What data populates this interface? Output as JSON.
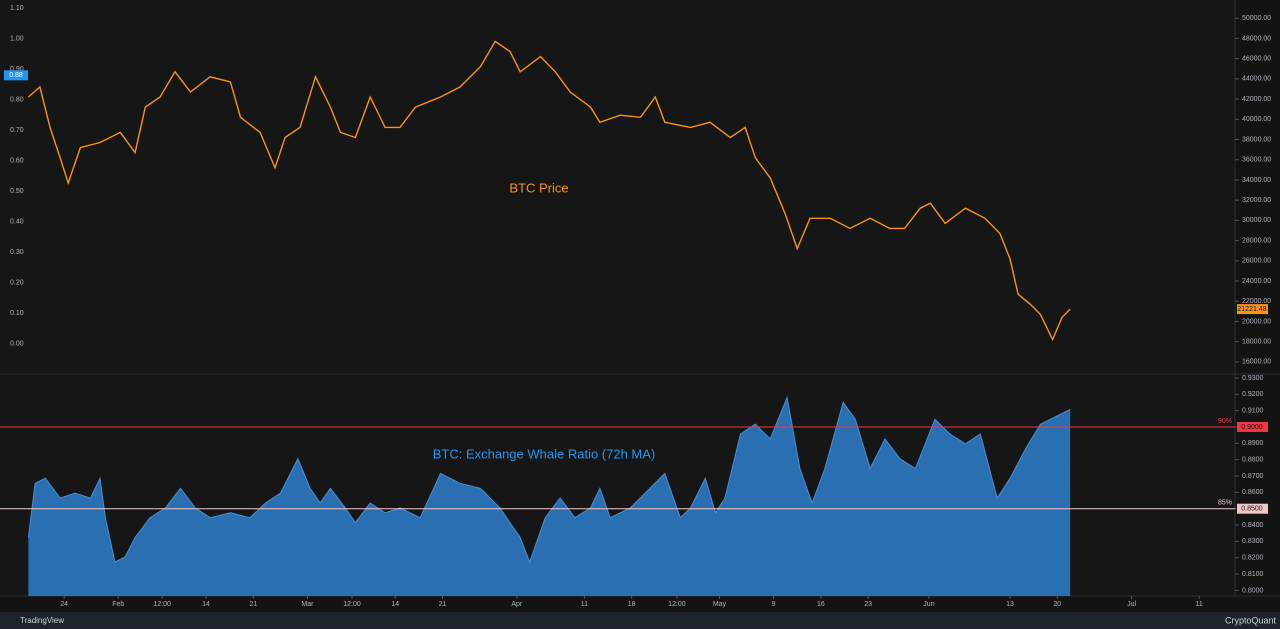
{
  "chart_data": [
    {
      "type": "line",
      "annotation": "BTC Price",
      "xlim": [
        -2.5,
        180.3
      ],
      "ylim": [
        14900,
        51800
      ],
      "y2lim": [
        -0.096,
        1.127
      ],
      "yticks": [
        {
          "value": 16000,
          "label": "16000.00"
        },
        {
          "value": 18000,
          "label": "18000.00"
        },
        {
          "value": 20000,
          "label": "20000.00"
        },
        {
          "value": 22000,
          "label": "22000.00"
        },
        {
          "value": 24000,
          "label": "24000.00"
        },
        {
          "value": 26000,
          "label": "26000.00"
        },
        {
          "value": 28000,
          "label": "28000.00"
        },
        {
          "value": 30000,
          "label": "30000.00"
        },
        {
          "value": 32000,
          "label": "32000.00"
        },
        {
          "value": 34000,
          "label": "34000.00"
        },
        {
          "value": 36000,
          "label": "36000.00"
        },
        {
          "value": 38000,
          "label": "38000.00"
        },
        {
          "value": 40000,
          "label": "40000.00"
        },
        {
          "value": 42000,
          "label": "42000.00"
        },
        {
          "value": 44000,
          "label": "44000.00"
        },
        {
          "value": 46000,
          "label": "46000.00"
        },
        {
          "value": 48000,
          "label": "48000.00"
        },
        {
          "value": 50000,
          "label": "50000.00"
        }
      ],
      "y2ticks": [
        {
          "value": 0,
          "label": "0.00"
        },
        {
          "value": 0.1,
          "label": "0.10"
        },
        {
          "value": 0.2,
          "label": "0.20"
        },
        {
          "value": 0.3,
          "label": "0.30"
        },
        {
          "value": 0.4,
          "label": "0.40"
        },
        {
          "value": 0.5,
          "label": "0.50"
        },
        {
          "value": 0.6,
          "label": "0.60"
        },
        {
          "value": 0.7,
          "label": "0.70"
        },
        {
          "value": 0.8,
          "label": "0.80"
        },
        {
          "value": 0.9,
          "label": "0.90"
        },
        {
          "value": 1.0,
          "label": "1.00"
        },
        {
          "value": 1.1,
          "label": "1.10"
        }
      ],
      "y2_marker": 0.88,
      "y2_marker_color": "#2196f3",
      "current_value": 21221.48,
      "current_color": "#f7931a",
      "series": [
        {
          "name": "BTC Price",
          "color": "#f7931a",
          "x": [
            1.7,
            3.4,
            4.9,
            6.4,
            7.6,
            9.4,
            12.3,
            15.3,
            17.5,
            19.0,
            21.2,
            23.4,
            25.7,
            28.6,
            31.6,
            33.1,
            36.0,
            38.2,
            39.7,
            41.9,
            44.2,
            46.4,
            47.9,
            50.1,
            52.3,
            54.5,
            56.7,
            59.0,
            62.7,
            65.6,
            68.6,
            70.8,
            73.0,
            74.5,
            77.5,
            79.7,
            81.9,
            84.9,
            86.3,
            89.3,
            92.3,
            94.5,
            95.9,
            99.7,
            102.6,
            105.6,
            107.8,
            109.3,
            111.5,
            113.7,
            115.5,
            117.4,
            120.4,
            123.3,
            126.3,
            129.2,
            131.4,
            133.7,
            135.2,
            137.4,
            140.4,
            143.3,
            145.5,
            147.0,
            148.2,
            150.0,
            151.5,
            153.3,
            154.7,
            155.9
          ],
          "values": [
            42200,
            43200,
            39200,
            36200,
            33700,
            37200,
            37700,
            38700,
            36700,
            41200,
            42200,
            44700,
            42700,
            44200,
            43700,
            40200,
            38700,
            35200,
            38200,
            39200,
            44200,
            41200,
            38700,
            38200,
            42200,
            39200,
            39200,
            41200,
            42200,
            43200,
            45200,
            47700,
            46700,
            44700,
            46200,
            44700,
            42700,
            41200,
            39700,
            40400,
            40200,
            42200,
            39700,
            39200,
            39700,
            38200,
            39200,
            36200,
            34200,
            30700,
            27200,
            30200,
            30200,
            29200,
            30200,
            29200,
            29200,
            31200,
            31700,
            29700,
            31200,
            30200,
            28700,
            26200,
            22700,
            21700,
            20700,
            18200,
            20400,
            21221.48
          ]
        }
      ]
    },
    {
      "type": "area",
      "annotation": "BTC: Exchange Whale Ratio (72h MA)",
      "xlim": [
        -2.5,
        180.3
      ],
      "ylim": [
        0.7966,
        0.9324
      ],
      "yticks": [
        {
          "value": 0.8,
          "label": "0.8000"
        },
        {
          "value": 0.81,
          "label": "0.8100"
        },
        {
          "value": 0.82,
          "label": "0.8200"
        },
        {
          "value": 0.83,
          "label": "0.8300"
        },
        {
          "value": 0.84,
          "label": "0.8400"
        },
        {
          "value": 0.85,
          "label": "0.8500"
        },
        {
          "value": 0.86,
          "label": "0.8600"
        },
        {
          "value": 0.87,
          "label": "0.8700"
        },
        {
          "value": 0.88,
          "label": "0.8800"
        },
        {
          "value": 0.89,
          "label": "0.8900"
        },
        {
          "value": 0.9,
          "label": "0.9000"
        },
        {
          "value": 0.91,
          "label": "0.9100"
        },
        {
          "value": 0.92,
          "label": "0.9200"
        },
        {
          "value": 0.93,
          "label": "0.9300"
        }
      ],
      "xticks": [
        {
          "value": 7,
          "label": "24"
        },
        {
          "value": 15,
          "label": "Feb"
        },
        {
          "value": 21.5,
          "label": "12:00"
        },
        {
          "value": 28,
          "label": "14"
        },
        {
          "value": 35,
          "label": "21"
        },
        {
          "value": 43,
          "label": "Mar"
        },
        {
          "value": 49.6,
          "label": "12:00"
        },
        {
          "value": 56,
          "label": "14"
        },
        {
          "value": 63,
          "label": "21"
        },
        {
          "value": 74,
          "label": "Apr"
        },
        {
          "value": 84,
          "label": "11"
        },
        {
          "value": 91,
          "label": "18"
        },
        {
          "value": 97.7,
          "label": "12:00"
        },
        {
          "value": 104,
          "label": "May"
        },
        {
          "value": 112,
          "label": "9"
        },
        {
          "value": 119,
          "label": "16"
        },
        {
          "value": 126,
          "label": "23"
        },
        {
          "value": 135,
          "label": "Jun"
        },
        {
          "value": 147,
          "label": "13"
        },
        {
          "value": 154,
          "label": "20"
        },
        {
          "value": 165,
          "label": "Jul"
        },
        {
          "value": 175,
          "label": "11"
        }
      ],
      "reference_lines": [
        {
          "value": 0.9,
          "label": "90%",
          "tag": "0.9000",
          "color": "#f23645"
        },
        {
          "value": 0.85,
          "label": "85%",
          "tag": "0.8500",
          "color": "#f0c8c8"
        }
      ],
      "series": [
        {
          "name": "BTC: Exchange Whale Ratio (72h MA)",
          "color": "#2b6fb3",
          "x": [
            1.7,
            2.7,
            4.2,
            6.4,
            8.6,
            10.9,
            12.3,
            13.1,
            14.5,
            16.0,
            17.5,
            19.7,
            22.0,
            24.2,
            26.4,
            28.6,
            31.6,
            34.5,
            36.8,
            39.0,
            41.6,
            43.4,
            44.9,
            46.4,
            48.6,
            50.1,
            52.3,
            54.5,
            56.7,
            59.7,
            62.7,
            65.6,
            68.6,
            71.5,
            74.5,
            75.9,
            78.2,
            80.4,
            82.6,
            84.9,
            86.3,
            87.8,
            90.8,
            93.7,
            95.9,
            98.2,
            99.7,
            101.9,
            103.4,
            104.8,
            107.1,
            109.3,
            111.5,
            114.0,
            115.9,
            117.7,
            119.6,
            122.3,
            124.1,
            126.3,
            128.5,
            130.7,
            133.0,
            135.9,
            138.1,
            140.4,
            142.6,
            145.1,
            147.0,
            149.3,
            151.5,
            154.4,
            155.9
          ],
          "values": [
            0.8324,
            0.8655,
            0.8686,
            0.8565,
            0.8595,
            0.8565,
            0.8686,
            0.8445,
            0.8174,
            0.8204,
            0.8324,
            0.8445,
            0.8505,
            0.8625,
            0.8505,
            0.8445,
            0.8475,
            0.8445,
            0.8535,
            0.8595,
            0.8806,
            0.8625,
            0.8535,
            0.8625,
            0.8505,
            0.8415,
            0.8535,
            0.8475,
            0.8505,
            0.8445,
            0.8716,
            0.8655,
            0.8625,
            0.8505,
            0.8324,
            0.8174,
            0.8445,
            0.8565,
            0.8445,
            0.8505,
            0.8625,
            0.8445,
            0.8505,
            0.8625,
            0.8716,
            0.8445,
            0.8505,
            0.8686,
            0.8475,
            0.8565,
            0.8957,
            0.9017,
            0.8927,
            0.918,
            0.8746,
            0.8535,
            0.8746,
            0.915,
            0.9047,
            0.8746,
            0.8927,
            0.8806,
            0.8746,
            0.9047,
            0.8957,
            0.8897,
            0.8957,
            0.8565,
            0.8686,
            0.8867,
            0.9017,
            0.9077,
            0.9107
          ]
        }
      ]
    }
  ],
  "footer": {
    "left": "TradingView",
    "right": "CryptoQuant"
  }
}
